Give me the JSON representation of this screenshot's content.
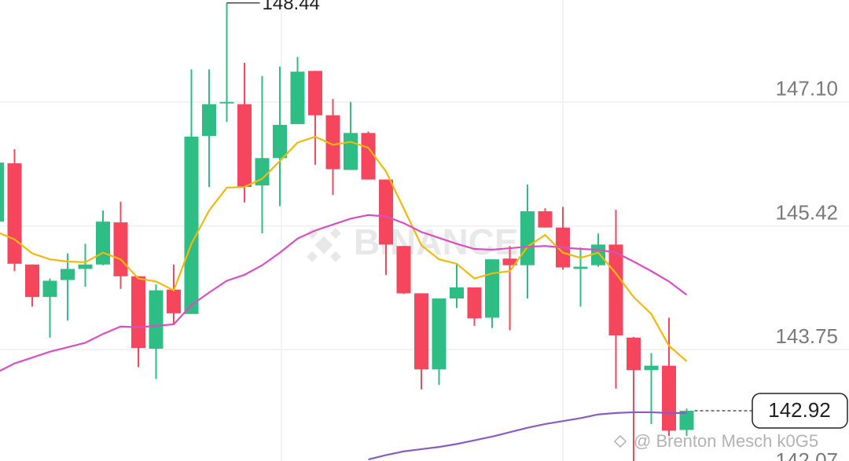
{
  "chart_data": {
    "type": "candlestick",
    "categories": [
      null,
      null,
      null,
      null,
      null,
      null,
      null,
      null,
      null,
      null,
      null,
      null,
      null,
      null,
      null,
      null,
      null,
      null,
      null,
      null,
      null,
      null,
      null,
      null,
      null,
      null,
      null,
      null,
      null,
      null,
      null,
      null,
      null,
      null,
      null,
      null,
      null,
      null,
      null,
      null
    ],
    "open": [
      145.48,
      146.27,
      144.9,
      144.46,
      144.69,
      144.84,
      144.9,
      145.47,
      144.74,
      143.76,
      144.56,
      144.23,
      146.64,
      147.08,
      147.07,
      145.97,
      146.34,
      146.8,
      147.52,
      146.92,
      146.18,
      146.68,
      146.05,
      145.15,
      144.51,
      143.48,
      144.44,
      144.59,
      144.18,
      144.98,
      144.89,
      145.62,
      145.4,
      144.84,
      144.89,
      145.17,
      143.91,
      143.47,
      143.53,
      142.66
    ],
    "high": [
      146.28,
      146.46,
      144.9,
      144.71,
      145.05,
      145.18,
      145.63,
      145.75,
      144.74,
      144.63,
      144.9,
      147.54,
      147.54,
      148.44,
      147.63,
      147.45,
      147.58,
      147.71,
      147.52,
      147.14,
      147.1,
      146.7,
      146.05,
      145.15,
      144.51,
      144.44,
      144.9,
      144.59,
      144.97,
      145.15,
      145.98,
      145.66,
      145.68,
      145.13,
      145.32,
      145.64,
      143.92,
      143.7,
      144.18,
      142.95
    ],
    "low": [
      145.48,
      144.81,
      144.33,
      143.91,
      144.14,
      144.6,
      144.89,
      144.57,
      143.51,
      143.35,
      144.1,
      144.23,
      145.95,
      146.83,
      145.74,
      145.32,
      145.69,
      146.8,
      146.25,
      145.84,
      146.18,
      146.05,
      144.76,
      144.5,
      143.21,
      143.27,
      144.31,
      144.07,
      144.04,
      144.01,
      144.44,
      145.4,
      144.83,
      144.33,
      144.87,
      143.22,
      142.24,
      142.74,
      142.58,
      142.58
    ],
    "close": [
      146.28,
      144.91,
      144.46,
      144.68,
      144.84,
      144.9,
      145.48,
      144.74,
      143.77,
      144.55,
      144.24,
      146.63,
      147.07,
      147.1,
      145.95,
      146.34,
      146.79,
      147.51,
      146.92,
      146.19,
      146.68,
      146.05,
      145.17,
      144.51,
      143.48,
      144.44,
      144.59,
      144.17,
      144.97,
      144.89,
      145.62,
      145.4,
      144.86,
      144.87,
      145.17,
      143.94,
      143.47,
      143.53,
      142.65,
      142.92
    ],
    "up_color": "#2ebd85",
    "down_color": "#f6465d",
    "series": [
      {
        "color": "#f0b90b",
        "values": [
          145.34,
          145.24,
          145.05,
          144.97,
          144.94,
          144.93,
          145.06,
          144.97,
          144.71,
          144.67,
          144.55,
          145.18,
          145.63,
          145.94,
          145.95,
          146.06,
          146.3,
          146.55,
          146.63,
          146.52,
          146.56,
          146.48,
          146.16,
          145.66,
          145.16,
          144.97,
          144.91,
          144.71,
          144.78,
          144.81,
          145.14,
          145.3,
          145.06,
          144.99,
          145.06,
          144.78,
          144.46,
          144.23,
          143.8,
          143.59
        ]
      },
      {
        "color": "#d94fc0",
        "values": [
          143.44,
          143.56,
          143.64,
          143.72,
          143.78,
          143.84,
          143.96,
          144.06,
          144.05,
          144.07,
          144.09,
          144.35,
          144.52,
          144.68,
          144.76,
          144.89,
          145.06,
          145.25,
          145.36,
          145.44,
          145.52,
          145.57,
          145.55,
          145.46,
          145.34,
          145.26,
          145.18,
          145.11,
          145.1,
          145.12,
          145.14,
          145.15,
          145.13,
          145.11,
          145.1,
          145.06,
          144.94,
          144.81,
          144.67,
          144.49
        ]
      },
      {
        "color": "#8a5cc2",
        "values": [
          null,
          null,
          null,
          null,
          null,
          null,
          null,
          null,
          null,
          null,
          null,
          null,
          null,
          null,
          null,
          null,
          null,
          null,
          null,
          null,
          null,
          142.26,
          142.32,
          142.37,
          142.4,
          142.43,
          142.47,
          142.52,
          142.57,
          142.63,
          142.69,
          142.74,
          142.78,
          142.82,
          142.87,
          142.89,
          142.9,
          142.9,
          142.89,
          142.89
        ]
      }
    ],
    "ylim": [
      142.24,
      148.48
    ],
    "yticks": [
      {
        "value": 147.1,
        "label": "147.10"
      },
      145.42,
      143.75,
      142.07
    ],
    "grid": true,
    "watermark": "BINANCE",
    "footer": "@ Brenton Mesch k0G5"
  }
}
